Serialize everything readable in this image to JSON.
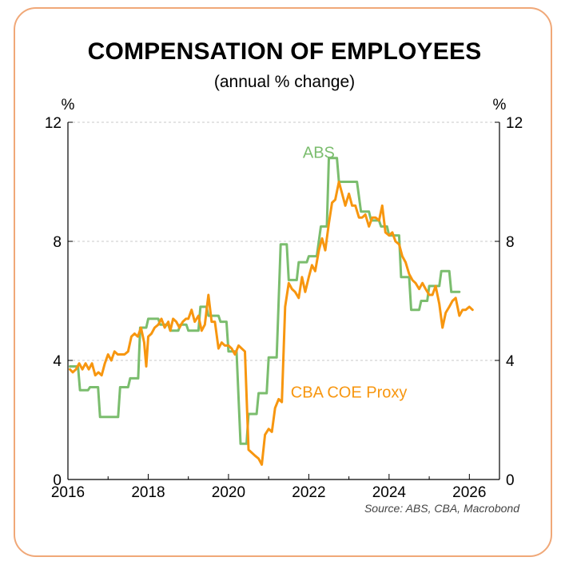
{
  "title": "COMPENSATION OF EMPLOYEES",
  "subtitle": "(annual % change)",
  "source": "Source: ABS, CBA, Macrobond",
  "chart_data": {
    "type": "line",
    "xlim": [
      2016,
      2026.75
    ],
    "ylim": [
      0,
      12
    ],
    "x_ticks": [
      2016,
      2018,
      2020,
      2022,
      2024,
      2026
    ],
    "x_tick_labels": [
      "2016",
      "2018",
      "2020",
      "2022",
      "2024",
      "2026"
    ],
    "y_ticks": [
      0,
      4,
      8,
      12
    ],
    "y_tick_labels": [
      "0",
      "4",
      "8",
      "12"
    ],
    "y_unit_left": "%",
    "y_unit_right": "%",
    "grid": "horizontal dashed",
    "series": [
      {
        "name": "ABS",
        "color": "#7bbd6e",
        "points": [
          [
            2016.05,
            3.8
          ],
          [
            2016.25,
            3.8
          ],
          [
            2016.3,
            3.0
          ],
          [
            2016.5,
            3.0
          ],
          [
            2016.55,
            3.1
          ],
          [
            2016.75,
            3.1
          ],
          [
            2016.8,
            2.1
          ],
          [
            2017.25,
            2.1
          ],
          [
            2017.3,
            3.1
          ],
          [
            2017.5,
            3.1
          ],
          [
            2017.55,
            3.4
          ],
          [
            2017.75,
            3.4
          ],
          [
            2017.8,
            5.1
          ],
          [
            2017.95,
            5.1
          ],
          [
            2018.0,
            5.4
          ],
          [
            2018.25,
            5.4
          ],
          [
            2018.3,
            5.2
          ],
          [
            2018.5,
            5.2
          ],
          [
            2018.55,
            5.0
          ],
          [
            2018.75,
            5.0
          ],
          [
            2018.8,
            5.2
          ],
          [
            2018.95,
            5.2
          ],
          [
            2019.0,
            5.0
          ],
          [
            2019.25,
            5.0
          ],
          [
            2019.3,
            5.8
          ],
          [
            2019.45,
            5.8
          ],
          [
            2019.5,
            5.5
          ],
          [
            2019.75,
            5.5
          ],
          [
            2019.8,
            5.3
          ],
          [
            2019.95,
            5.3
          ],
          [
            2020.0,
            4.3
          ],
          [
            2020.2,
            4.3
          ],
          [
            2020.3,
            1.2
          ],
          [
            2020.45,
            1.2
          ],
          [
            2020.5,
            2.2
          ],
          [
            2020.7,
            2.2
          ],
          [
            2020.75,
            2.9
          ],
          [
            2020.95,
            2.9
          ],
          [
            2021.0,
            4.1
          ],
          [
            2021.2,
            4.1
          ],
          [
            2021.3,
            7.9
          ],
          [
            2021.45,
            7.9
          ],
          [
            2021.5,
            6.7
          ],
          [
            2021.7,
            6.7
          ],
          [
            2021.75,
            7.3
          ],
          [
            2021.95,
            7.3
          ],
          [
            2022.0,
            7.5
          ],
          [
            2022.2,
            7.5
          ],
          [
            2022.3,
            8.5
          ],
          [
            2022.45,
            8.5
          ],
          [
            2022.5,
            10.8
          ],
          [
            2022.7,
            10.8
          ],
          [
            2022.75,
            10.0
          ],
          [
            2023.2,
            10.0
          ],
          [
            2023.3,
            9.0
          ],
          [
            2023.5,
            9.0
          ],
          [
            2023.55,
            8.7
          ],
          [
            2023.75,
            8.7
          ],
          [
            2023.8,
            8.5
          ],
          [
            2023.95,
            8.5
          ],
          [
            2024.0,
            8.2
          ],
          [
            2024.25,
            8.2
          ],
          [
            2024.3,
            6.8
          ],
          [
            2024.5,
            6.8
          ],
          [
            2024.55,
            5.7
          ],
          [
            2024.75,
            5.7
          ],
          [
            2024.8,
            6.0
          ],
          [
            2024.95,
            6.0
          ],
          [
            2025.0,
            6.5
          ],
          [
            2025.25,
            6.5
          ],
          [
            2025.3,
            7.0
          ],
          [
            2025.5,
            7.0
          ],
          [
            2025.55,
            6.3
          ],
          [
            2025.75,
            6.3
          ]
        ]
      },
      {
        "name": "CBA COE Proxy",
        "color": "#f7960f",
        "points": [
          [
            2016.05,
            3.7
          ],
          [
            2016.12,
            3.6
          ],
          [
            2016.2,
            3.7
          ],
          [
            2016.28,
            3.9
          ],
          [
            2016.36,
            3.7
          ],
          [
            2016.44,
            3.9
          ],
          [
            2016.52,
            3.7
          ],
          [
            2016.6,
            3.9
          ],
          [
            2016.68,
            3.5
          ],
          [
            2016.76,
            3.6
          ],
          [
            2016.84,
            3.5
          ],
          [
            2016.92,
            3.9
          ],
          [
            2017.0,
            4.2
          ],
          [
            2017.08,
            4.0
          ],
          [
            2017.16,
            4.3
          ],
          [
            2017.24,
            4.2
          ],
          [
            2017.33,
            4.2
          ],
          [
            2017.41,
            4.2
          ],
          [
            2017.5,
            4.3
          ],
          [
            2017.58,
            4.8
          ],
          [
            2017.66,
            4.9
          ],
          [
            2017.74,
            4.8
          ],
          [
            2017.82,
            5.1
          ],
          [
            2017.9,
            4.6
          ],
          [
            2017.95,
            3.8
          ],
          [
            2018.0,
            4.8
          ],
          [
            2018.08,
            4.9
          ],
          [
            2018.16,
            5.1
          ],
          [
            2018.25,
            5.2
          ],
          [
            2018.33,
            5.4
          ],
          [
            2018.41,
            5.1
          ],
          [
            2018.5,
            5.3
          ],
          [
            2018.55,
            5.0
          ],
          [
            2018.62,
            5.4
          ],
          [
            2018.7,
            5.3
          ],
          [
            2018.78,
            5.1
          ],
          [
            2018.86,
            5.3
          ],
          [
            2018.94,
            5.4
          ],
          [
            2019.0,
            5.4
          ],
          [
            2019.08,
            5.7
          ],
          [
            2019.16,
            5.3
          ],
          [
            2019.25,
            5.5
          ],
          [
            2019.33,
            5.0
          ],
          [
            2019.41,
            5.2
          ],
          [
            2019.5,
            6.2
          ],
          [
            2019.58,
            5.3
          ],
          [
            2019.66,
            5.3
          ],
          [
            2019.75,
            4.4
          ],
          [
            2019.83,
            4.6
          ],
          [
            2019.91,
            4.5
          ],
          [
            2020.0,
            4.5
          ],
          [
            2020.08,
            4.4
          ],
          [
            2020.16,
            4.2
          ],
          [
            2020.25,
            4.5
          ],
          [
            2020.33,
            4.4
          ],
          [
            2020.41,
            4.3
          ],
          [
            2020.5,
            1.0
          ],
          [
            2020.58,
            0.9
          ],
          [
            2020.66,
            0.8
          ],
          [
            2020.75,
            0.7
          ],
          [
            2020.83,
            0.5
          ],
          [
            2020.91,
            1.5
          ],
          [
            2021.0,
            1.7
          ],
          [
            2021.08,
            1.6
          ],
          [
            2021.16,
            2.4
          ],
          [
            2021.25,
            2.7
          ],
          [
            2021.33,
            2.6
          ],
          [
            2021.41,
            5.8
          ],
          [
            2021.5,
            6.6
          ],
          [
            2021.58,
            6.4
          ],
          [
            2021.66,
            6.3
          ],
          [
            2021.75,
            6.1
          ],
          [
            2021.83,
            6.8
          ],
          [
            2021.91,
            6.3
          ],
          [
            2022.0,
            6.8
          ],
          [
            2022.08,
            7.2
          ],
          [
            2022.16,
            7.0
          ],
          [
            2022.25,
            7.7
          ],
          [
            2022.33,
            8.1
          ],
          [
            2022.41,
            7.7
          ],
          [
            2022.5,
            8.6
          ],
          [
            2022.58,
            9.3
          ],
          [
            2022.66,
            9.4
          ],
          [
            2022.75,
            10.0
          ],
          [
            2022.83,
            9.6
          ],
          [
            2022.91,
            9.2
          ],
          [
            2023.0,
            9.6
          ],
          [
            2023.08,
            9.2
          ],
          [
            2023.16,
            9.2
          ],
          [
            2023.25,
            8.8
          ],
          [
            2023.33,
            8.8
          ],
          [
            2023.41,
            8.9
          ],
          [
            2023.5,
            8.5
          ],
          [
            2023.58,
            8.8
          ],
          [
            2023.66,
            8.8
          ],
          [
            2023.75,
            8.7
          ],
          [
            2023.83,
            9.2
          ],
          [
            2023.91,
            8.3
          ],
          [
            2024.0,
            8.2
          ],
          [
            2024.08,
            8.3
          ],
          [
            2024.16,
            8.0
          ],
          [
            2024.25,
            7.9
          ],
          [
            2024.33,
            7.5
          ],
          [
            2024.41,
            7.3
          ],
          [
            2024.5,
            6.9
          ],
          [
            2024.58,
            6.7
          ],
          [
            2024.66,
            6.6
          ],
          [
            2024.75,
            6.4
          ],
          [
            2024.83,
            6.6
          ],
          [
            2024.91,
            6.4
          ],
          [
            2025.0,
            6.2
          ],
          [
            2025.08,
            6.2
          ],
          [
            2025.16,
            6.5
          ],
          [
            2025.25,
            5.9
          ],
          [
            2025.33,
            5.1
          ],
          [
            2025.41,
            5.6
          ],
          [
            2025.5,
            5.8
          ],
          [
            2025.58,
            6.0
          ],
          [
            2025.66,
            6.1
          ],
          [
            2025.75,
            5.5
          ],
          [
            2025.83,
            5.7
          ],
          [
            2025.91,
            5.7
          ],
          [
            2026.0,
            5.8
          ],
          [
            2026.08,
            5.7
          ]
        ]
      }
    ],
    "annotations": [
      {
        "text": "ABS",
        "x": 2021.85,
        "y": 10.8,
        "color": "#7bbd6e"
      },
      {
        "text": "CBA COE Proxy",
        "x": 2021.55,
        "y": 2.75,
        "color": "#f7960f"
      }
    ]
  }
}
